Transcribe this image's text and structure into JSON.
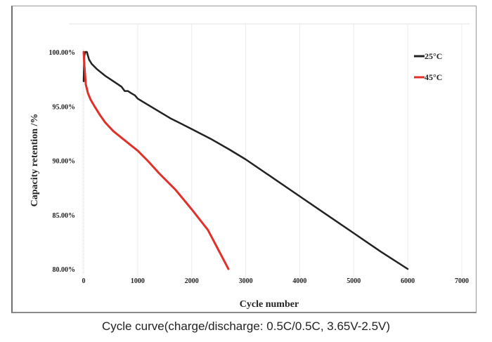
{
  "caption": "Cycle curve(charge/discharge: 0.5C/0.5C, 3.65V-2.5V)",
  "chart_data": {
    "type": "line",
    "title": "",
    "xlabel": "Cycle number",
    "ylabel": "Capacity retention /%",
    "xlim": [
      0,
      7000
    ],
    "ylim": [
      80,
      100
    ],
    "xticks": [
      0,
      1000,
      2000,
      3000,
      4000,
      5000,
      6000,
      7000
    ],
    "xtick_labels": [
      "0",
      "1000",
      "2000",
      "3000",
      "4000",
      "5000",
      "6000",
      "7000"
    ],
    "yticks": [
      80,
      85,
      90,
      95,
      100
    ],
    "ytick_labels": [
      "80.00%",
      "85.00%",
      "90.00%",
      "95.00%",
      "100.00%"
    ],
    "grid": "faint vertical",
    "legend_position": "top-right",
    "series": [
      {
        "name": "25°C",
        "color": "#222222",
        "x": [
          0,
          10,
          30,
          60,
          100,
          150,
          250,
          400,
          550,
          700,
          760,
          820,
          880,
          950,
          1000,
          1100,
          1300,
          1600,
          2000,
          2350,
          2700,
          3000,
          3500,
          4000,
          4500,
          5000,
          5500,
          6000
        ],
        "y": [
          97.3,
          99.6,
          100.0,
          100.0,
          99.3,
          98.9,
          98.4,
          97.8,
          97.3,
          96.8,
          96.4,
          96.4,
          96.2,
          96.0,
          95.7,
          95.4,
          94.8,
          93.9,
          92.9,
          92.0,
          91.0,
          90.1,
          88.4,
          86.7,
          85.0,
          83.3,
          81.6,
          80.0
        ]
      },
      {
        "name": "45°C",
        "color": "#e0302a",
        "x": [
          0,
          15,
          40,
          80,
          130,
          200,
          300,
          400,
          550,
          700,
          850,
          1000,
          1200,
          1400,
          1700,
          2000,
          2300,
          2680
        ],
        "y": [
          100.0,
          98.6,
          97.0,
          96.2,
          95.6,
          95.0,
          94.2,
          93.5,
          92.7,
          92.1,
          91.5,
          90.9,
          89.9,
          88.8,
          87.3,
          85.5,
          83.6,
          80.0
        ]
      }
    ]
  }
}
